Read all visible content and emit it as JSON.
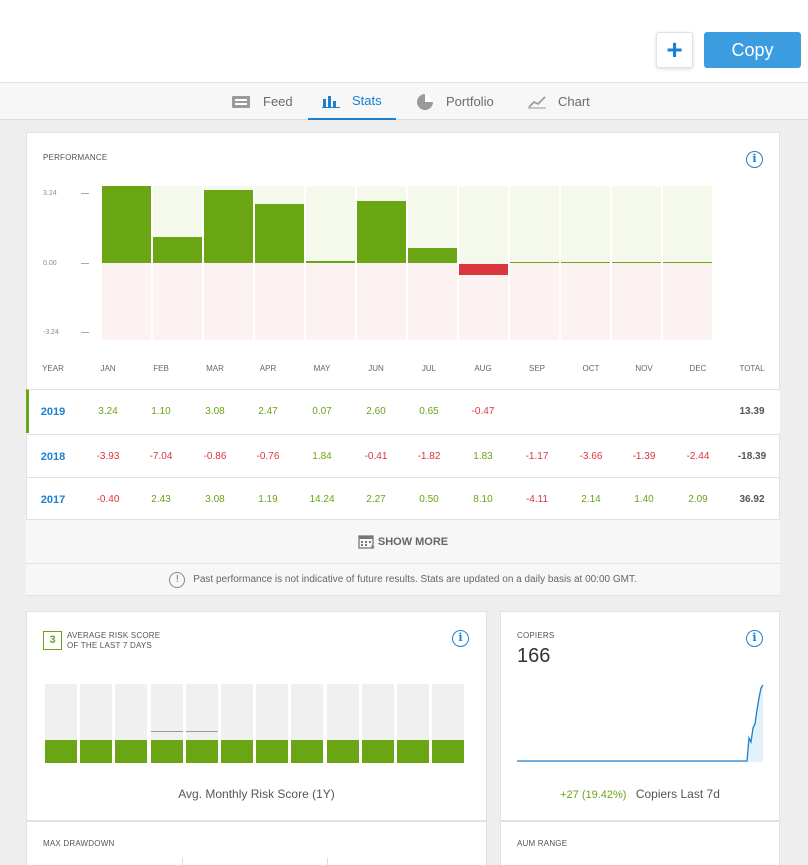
{
  "header": {
    "add_label": "+",
    "copy_label": "Copy"
  },
  "tabs": [
    {
      "label": "Feed",
      "icon": "feed-icon",
      "active": false
    },
    {
      "label": "Stats",
      "icon": "bar-chart-icon",
      "active": true
    },
    {
      "label": "Portfolio",
      "icon": "pie-chart-icon",
      "active": false
    },
    {
      "label": "Chart",
      "icon": "line-chart-icon",
      "active": false
    }
  ],
  "performance": {
    "title": "PERFORMANCE",
    "y_ticks": [
      "3.24",
      "0.00",
      "-3.24"
    ],
    "headers": [
      "YEAR",
      "JAN",
      "FEB",
      "MAR",
      "APR",
      "MAY",
      "JUN",
      "JUL",
      "AUG",
      "SEP",
      "OCT",
      "NOV",
      "DEC",
      "TOTAL"
    ],
    "rows": [
      {
        "year": "2019",
        "values": [
          "3.24",
          "1.10",
          "3.08",
          "2.47",
          "0.07",
          "2.60",
          "0.65",
          "-0.47",
          "",
          "",
          "",
          ""
        ],
        "total": "13.39"
      },
      {
        "year": "2018",
        "values": [
          "-3.93",
          "-7.04",
          "-0.86",
          "-0.76",
          "1.84",
          "-0.41",
          "-1.82",
          "1.83",
          "-1.17",
          "-3.66",
          "-1.39",
          "-2.44"
        ],
        "total": "-18.39"
      },
      {
        "year": "2017",
        "values": [
          "-0.40",
          "2.43",
          "3.08",
          "1.19",
          "14.24",
          "2.27",
          "0.50",
          "8.10",
          "-4.11",
          "2.14",
          "1.40",
          "2.09"
        ],
        "total": "36.92"
      }
    ],
    "show_more_label": "SHOW MORE",
    "disclaimer": "Past performance is not indicative of future results. Stats are updated on a daily basis at 00:00 GMT."
  },
  "chart_data": {
    "type": "bar",
    "categories": [
      "JAN",
      "FEB",
      "MAR",
      "APR",
      "MAY",
      "JUN",
      "JUL",
      "AUG",
      "SEP",
      "OCT",
      "NOV",
      "DEC"
    ],
    "values": [
      3.24,
      1.1,
      3.08,
      2.47,
      0.07,
      2.6,
      0.65,
      -0.47,
      0,
      0,
      0,
      0
    ],
    "ylim": [
      -3.24,
      3.24
    ],
    "positive_color": "#6aa514",
    "negative_color": "#d9363e"
  },
  "risk": {
    "score": "3",
    "title_line1": "AVERAGE RISK SCORE",
    "title_line2": "OF THE LAST 7 DAYS",
    "caption": "Avg. Monthly Risk Score (1Y)",
    "monthly": [
      3,
      3,
      3,
      3,
      3,
      3,
      3,
      3,
      3,
      3,
      3,
      3
    ]
  },
  "copiers": {
    "title": "COPIERS",
    "count": "166",
    "change": "+27 (19.42%)",
    "change_label": "Copiers Last 7d"
  },
  "bottom": {
    "max_drawdown_title": "MAX DRAWDOWN",
    "aum_title": "AUM RANGE"
  }
}
